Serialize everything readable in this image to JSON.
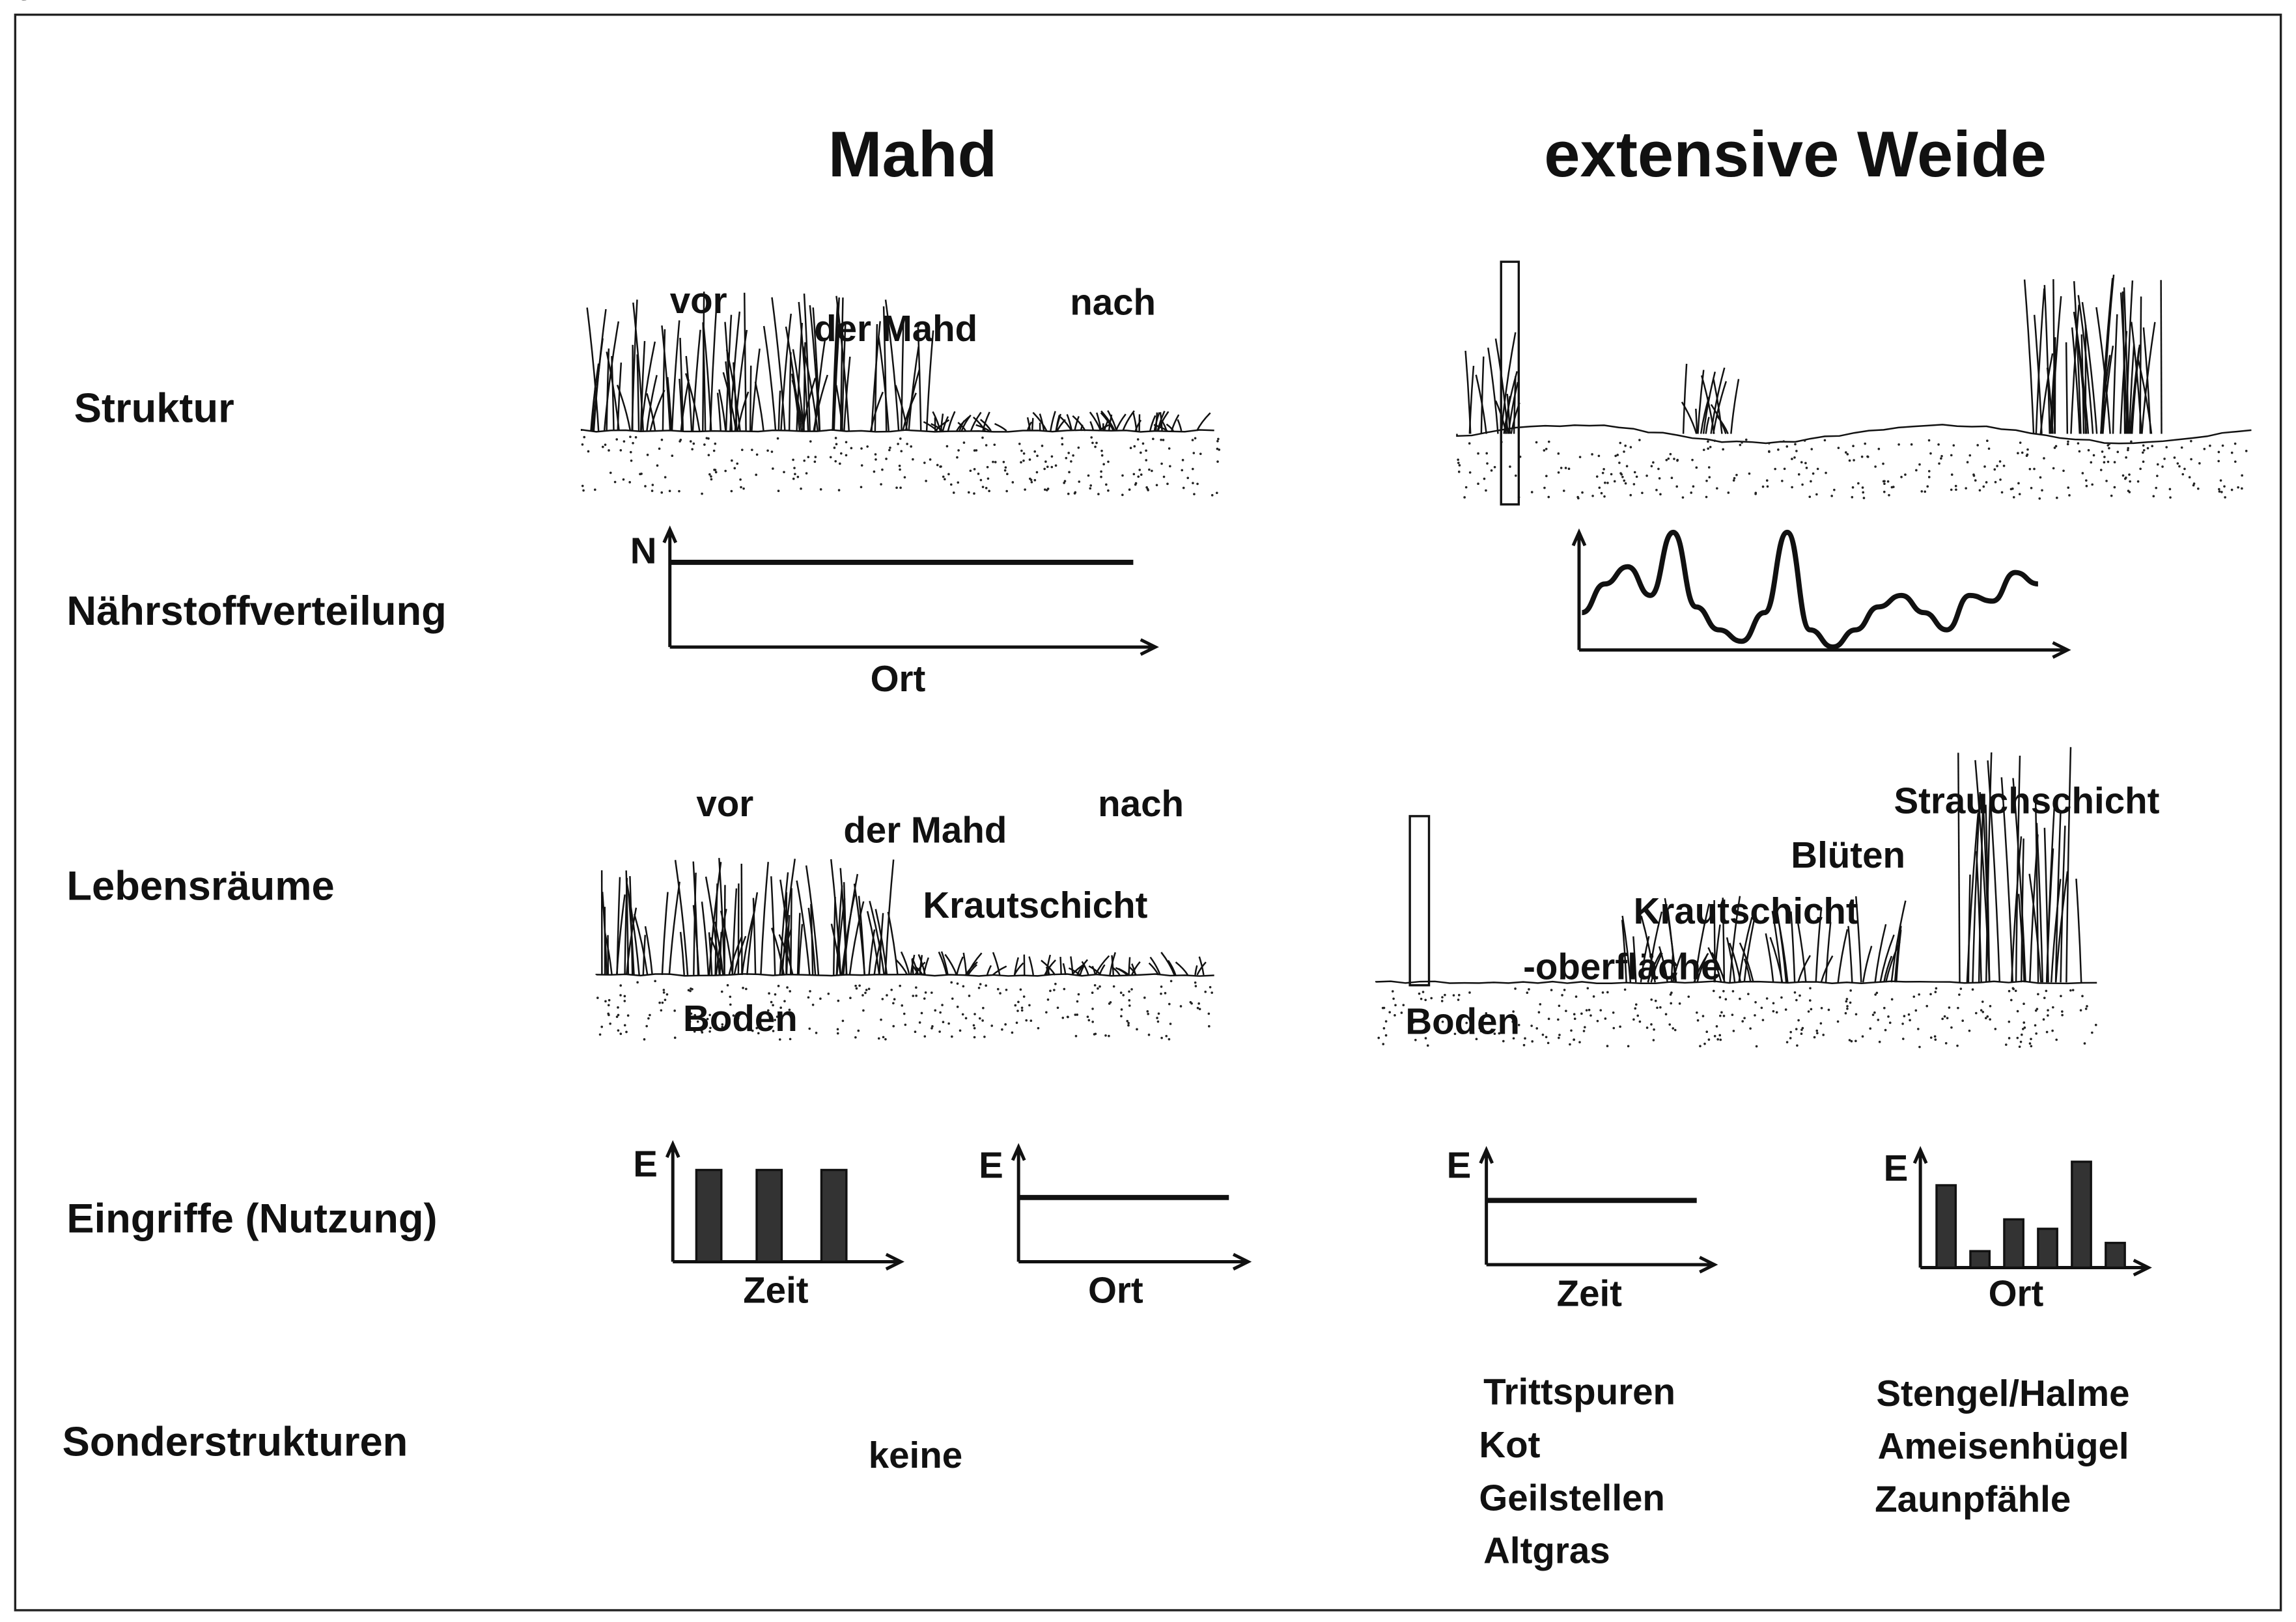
{
  "columns": {
    "mahd": "Mahd",
    "weide": "extensive Weide"
  },
  "rows": {
    "struktur": "Struktur",
    "naehrstoff": "Nährstoffverteilung",
    "lebensraeume": "Lebensräume",
    "eingriffe": "Eingriffe (Nutzung)",
    "sonder": "Sonderstrukturen"
  },
  "struktur": {
    "vor": "vor",
    "der_mahd": "der Mahd",
    "nach": "nach"
  },
  "lebensraeume": {
    "mahd": {
      "vor": "vor",
      "der_mahd": "der Mahd",
      "nach": "nach",
      "krautschicht": "Krautschicht",
      "boden": "Boden"
    },
    "weide": {
      "strauchschicht": "Strauchschicht",
      "blueten": "Blüten",
      "krautschicht": "Krautschicht",
      "oberflaeche": "-oberfläche",
      "boden": "Boden"
    }
  },
  "chart_data": [
    {
      "id": "mahd-naehrstoff",
      "type": "line",
      "ylabel": "N",
      "xlabel": "Ort",
      "shape": "constant",
      "values": [
        0.72,
        0.72
      ]
    },
    {
      "id": "weide-naehrstoff",
      "type": "line",
      "ylabel": "N",
      "xlabel": "Ort",
      "shape": "variable",
      "values": [
        0.3,
        0.55,
        0.7,
        0.45,
        1.0,
        0.35,
        0.15,
        0.05,
        0.3,
        1.0,
        0.15,
        0.0,
        0.15,
        0.35,
        0.45,
        0.3,
        0.15,
        0.45,
        0.4,
        0.65,
        0.55
      ]
    },
    {
      "id": "mahd-eingriffe-zeit",
      "type": "bar",
      "ylabel": "E",
      "xlabel": "Zeit",
      "values": [
        0.78,
        0.78,
        0.78
      ]
    },
    {
      "id": "mahd-eingriffe-ort",
      "type": "line",
      "ylabel": "E",
      "xlabel": "Ort",
      "shape": "constant",
      "values": [
        0.56,
        0.56
      ]
    },
    {
      "id": "weide-eingriffe-zeit",
      "type": "line",
      "ylabel": "E",
      "xlabel": "Zeit",
      "shape": "constant",
      "values": [
        0.56,
        0.56
      ]
    },
    {
      "id": "weide-eingriffe-ort",
      "type": "bar",
      "ylabel": "E",
      "xlabel": "Ort",
      "values": [
        0.7,
        0.14,
        0.41,
        0.33,
        0.9,
        0.21
      ]
    }
  ],
  "sonder": {
    "mahd": "keine",
    "weide_left": [
      "Trittspuren",
      "Kot",
      "Geilstellen",
      "Altgras"
    ],
    "weide_right": [
      "Stengel/Halme",
      "Ameisenhügel",
      "Zaunpfähle"
    ]
  }
}
